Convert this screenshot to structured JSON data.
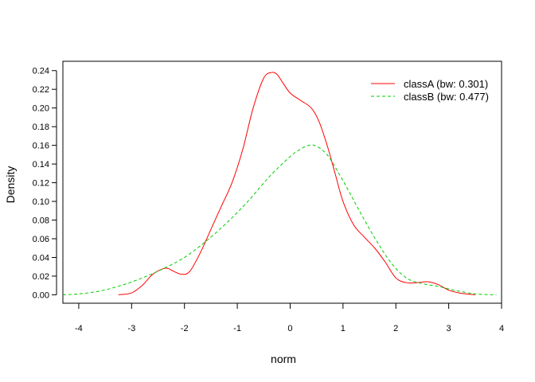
{
  "chart_data": {
    "type": "line",
    "title": "",
    "xlabel": "norm",
    "ylabel": "Density",
    "xlim": [
      -4.3,
      4.0
    ],
    "ylim": [
      -0.009,
      0.25
    ],
    "grid": false,
    "legend_position": "top-right",
    "x_ticks": [
      -4,
      -3,
      -2,
      -1,
      0,
      1,
      2,
      3,
      4
    ],
    "x_tick_labels": [
      "-4",
      "-3",
      "-2",
      "-1",
      "0",
      "1",
      "2",
      "3",
      "4"
    ],
    "y_ticks": [
      0.0,
      0.02,
      0.04,
      0.06,
      0.08,
      0.1,
      0.12,
      0.14,
      0.16,
      0.18,
      0.2,
      0.22,
      0.24
    ],
    "y_tick_labels": [
      "0.00",
      "0.02",
      "0.04",
      "0.06",
      "0.08",
      "0.10",
      "0.12",
      "0.14",
      "0.16",
      "0.18",
      "0.20",
      "0.22",
      "0.24"
    ],
    "series": [
      {
        "name": "classA (bw: 0.301)",
        "color": "#ff0000",
        "dash": "solid",
        "x": [
          -3.25,
          -3.0,
          -2.8,
          -2.6,
          -2.4,
          -2.3,
          -2.2,
          -2.05,
          -1.9,
          -1.7,
          -1.5,
          -1.3,
          -1.1,
          -0.9,
          -0.7,
          -0.5,
          -0.35,
          -0.25,
          -0.15,
          0.0,
          0.2,
          0.4,
          0.55,
          0.7,
          0.85,
          1.0,
          1.2,
          1.4,
          1.6,
          1.8,
          2.0,
          2.2,
          2.4,
          2.6,
          2.8,
          3.0,
          3.2,
          3.5
        ],
        "y": [
          0.0,
          0.002,
          0.01,
          0.022,
          0.028,
          0.028,
          0.025,
          0.022,
          0.025,
          0.045,
          0.07,
          0.095,
          0.12,
          0.155,
          0.2,
          0.232,
          0.238,
          0.236,
          0.228,
          0.216,
          0.208,
          0.2,
          0.185,
          0.16,
          0.13,
          0.1,
          0.075,
          0.062,
          0.05,
          0.035,
          0.018,
          0.013,
          0.013,
          0.014,
          0.011,
          0.005,
          0.002,
          0.0
        ]
      },
      {
        "name": "classB (bw: 0.477)",
        "color": "#00cc00",
        "dash": "dashed",
        "x": [
          -4.3,
          -4.0,
          -3.6,
          -3.2,
          -2.8,
          -2.4,
          -2.0,
          -1.6,
          -1.2,
          -0.8,
          -0.4,
          0.0,
          0.2,
          0.35,
          0.5,
          0.7,
          0.9,
          1.1,
          1.3,
          1.6,
          1.9,
          2.2,
          2.5,
          2.8,
          3.1,
          3.5,
          3.9
        ],
        "y": [
          0.0,
          0.001,
          0.004,
          0.01,
          0.018,
          0.028,
          0.04,
          0.057,
          0.077,
          0.1,
          0.126,
          0.148,
          0.156,
          0.16,
          0.159,
          0.15,
          0.132,
          0.112,
          0.091,
          0.061,
          0.035,
          0.018,
          0.012,
          0.009,
          0.005,
          0.001,
          0.0
        ]
      }
    ]
  }
}
